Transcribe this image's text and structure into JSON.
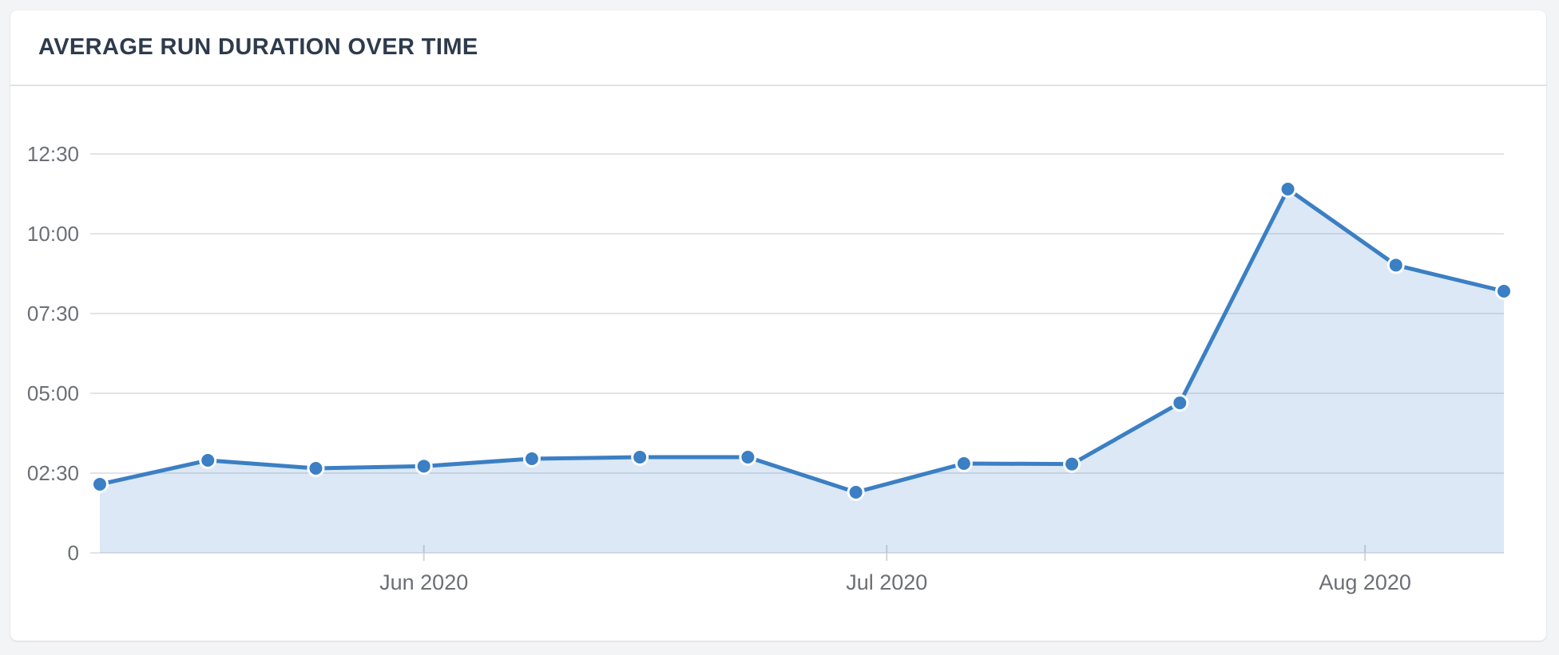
{
  "card": {
    "header": {
      "title": "AVERAGE RUN DURATION OVER TIME"
    }
  },
  "chart_data": {
    "type": "area",
    "title": "AVERAGE RUN DURATION OVER TIME",
    "x_unit": "week",
    "x": [
      "2020-05-11",
      "2020-05-18",
      "2020-05-25",
      "2020-06-01",
      "2020-06-08",
      "2020-06-15",
      "2020-06-22",
      "2020-06-29",
      "2020-07-06",
      "2020-07-13",
      "2020-07-20",
      "2020-07-27",
      "2020-08-03",
      "2020-08-10"
    ],
    "values_seconds": [
      129,
      174,
      159,
      163,
      177,
      180,
      180,
      114,
      168,
      167,
      282,
      684,
      541,
      492
    ],
    "values_formatted": [
      "2:09",
      "2:54",
      "2:39",
      "2:43",
      "2:57",
      "3:00",
      "3:00",
      "1:54",
      "2:48",
      "2:47",
      "4:42",
      "11:24",
      "9:01",
      "8:12"
    ],
    "ylim": [
      0,
      750
    ],
    "ytick_seconds": [
      0,
      150,
      300,
      450,
      600,
      750
    ],
    "ytick_labels": [
      "0",
      "02:30",
      "05:00",
      "07:30",
      "10:00",
      "12:30"
    ],
    "xticks": [
      {
        "date": "2020-06-01",
        "label": "Jun 2020"
      },
      {
        "date": "2020-07-01",
        "label": "Jul 2020"
      },
      {
        "date": "2020-08-01",
        "label": "Aug 2020"
      }
    ],
    "grid": true,
    "legend": false,
    "colors": {
      "line": "#3b7fc4",
      "area_fill": "rgba(59,127,198,0.18)",
      "point_fill": "#3b7fc4",
      "point_border": "#ffffff",
      "gridline": "#e3e4e7",
      "tick": "#d4d6da",
      "axis_label": "#6c6f75",
      "title": "#2e3b4d"
    }
  }
}
